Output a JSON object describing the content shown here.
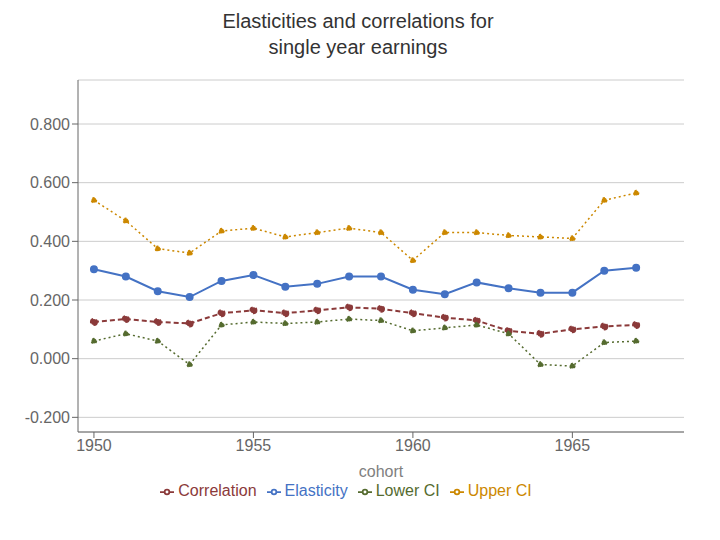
{
  "chart_data": {
    "type": "line",
    "title": "Elasticities and correlations for\nsingle year earnings",
    "xlabel": "cohort",
    "x": [
      1950,
      1951,
      1952,
      1953,
      1954,
      1955,
      1956,
      1957,
      1958,
      1959,
      1960,
      1961,
      1962,
      1963,
      1964,
      1965,
      1966,
      1967
    ],
    "series": [
      {
        "name": "Elasticity",
        "color": "#4472C4",
        "marker": "circle",
        "line_style": "solid",
        "values": [
          0.305,
          0.28,
          0.23,
          0.21,
          0.265,
          0.285,
          0.245,
          0.255,
          0.28,
          0.28,
          0.235,
          0.22,
          0.26,
          0.24,
          0.225,
          0.225,
          0.3,
          0.31
        ]
      },
      {
        "name": "Correlation",
        "color": "#8B3A3A",
        "marker": "circle",
        "line_style": "dashed",
        "values": [
          0.125,
          0.135,
          0.125,
          0.12,
          0.155,
          0.165,
          0.155,
          0.165,
          0.175,
          0.17,
          0.155,
          0.14,
          0.13,
          0.095,
          0.085,
          0.1,
          0.11,
          0.115
        ]
      },
      {
        "name": "Lower CI",
        "color": "#556B2F",
        "marker": "circle",
        "line_style": "dotted",
        "values": [
          0.06,
          0.085,
          0.06,
          -0.02,
          0.115,
          0.125,
          0.12,
          0.125,
          0.135,
          0.13,
          0.095,
          0.105,
          0.115,
          0.085,
          -0.02,
          -0.025,
          0.055,
          0.06
        ]
      },
      {
        "name": "Upper CI",
        "color": "#CC8800",
        "marker": "circle",
        "line_style": "dotted",
        "values": [
          0.54,
          0.47,
          0.375,
          0.36,
          0.435,
          0.445,
          0.415,
          0.43,
          0.445,
          0.43,
          0.335,
          0.43,
          0.43,
          0.42,
          0.415,
          0.41,
          0.54,
          0.565
        ]
      }
    ],
    "xlim": [
      1949.5,
      1968.5
    ],
    "xticks": [
      1950,
      1955,
      1960,
      1965
    ],
    "ylim": [
      -0.25,
      0.95
    ],
    "yticks": [
      {
        "value": -0.2,
        "label": "-0.200"
      },
      {
        "value": 0,
        "label": "0.000"
      },
      {
        "value": 0.2,
        "label": "0.200"
      },
      {
        "value": 0.4,
        "label": "0.400"
      },
      {
        "value": 0.6,
        "label": "0.600"
      },
      {
        "value": 0.8,
        "label": "0.800"
      }
    ],
    "grid": true,
    "legend": "bottom"
  }
}
